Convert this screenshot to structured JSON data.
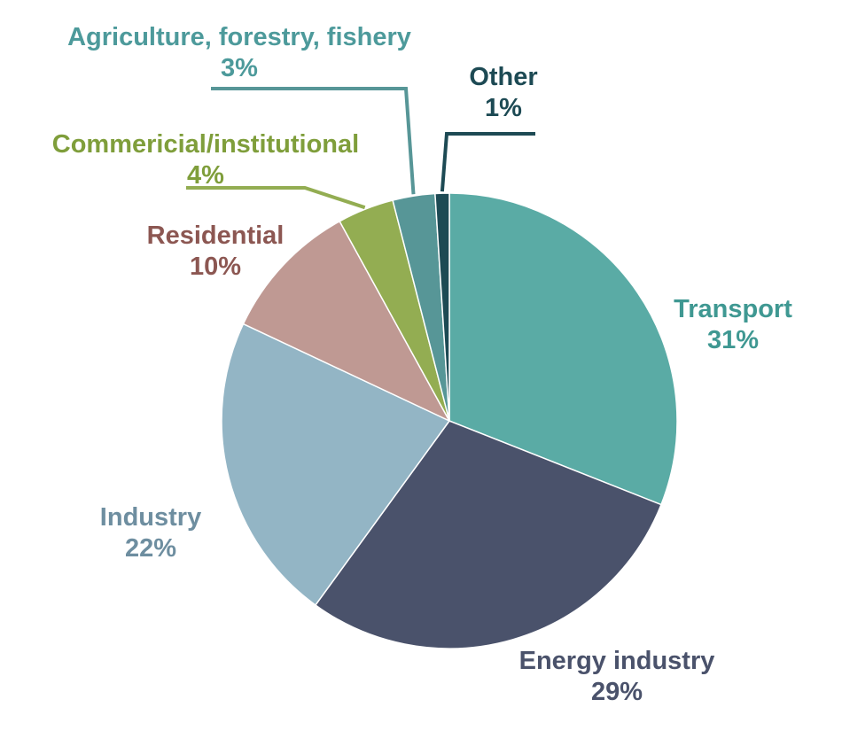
{
  "chart_data": {
    "type": "pie",
    "title": "",
    "slices": [
      {
        "label": "Transport",
        "value": 31,
        "value_label": "31%",
        "color": "#5aaba5",
        "text_color": "#3f9892"
      },
      {
        "label": "Energy industry",
        "value": 29,
        "value_label": "29%",
        "color": "#4a526b",
        "text_color": "#4a526b"
      },
      {
        "label": "Industry",
        "value": 22,
        "value_label": "22%",
        "color": "#93b5c5",
        "text_color": "#6e8ea0"
      },
      {
        "label": "Residential",
        "value": 10,
        "value_label": "10%",
        "color": "#bf9993",
        "text_color": "#8c5752"
      },
      {
        "label": "Commericial/institutional",
        "value": 4,
        "value_label": "4%",
        "color": "#93ad52",
        "text_color": "#7f9e3b"
      },
      {
        "label": "Agriculture, forestry, fishery",
        "value": 3,
        "value_label": "3%",
        "color": "#579697",
        "text_color": "#4d9a9b"
      },
      {
        "label": "Other",
        "value": 1,
        "value_label": "1%",
        "color": "#1d4a54",
        "text_color": "#1d4a54"
      }
    ]
  }
}
